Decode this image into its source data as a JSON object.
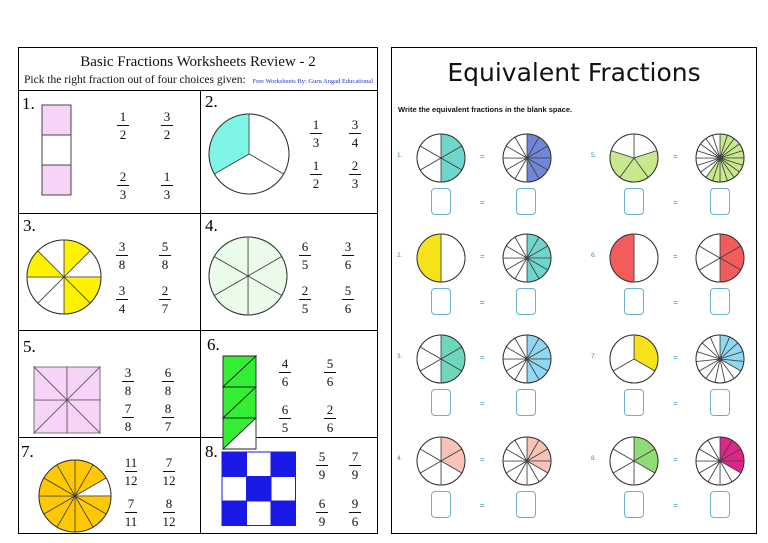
{
  "left": {
    "title": "Basic Fractions Worksheets Review - 2",
    "instruction": "Pick the right fraction out of four choices given:",
    "credit": "Free Worksheets By: Guru Angad Educational",
    "questions": [
      {
        "number": "1.",
        "shape": "vertical-bar",
        "parts": 3,
        "shaded": [
          0,
          2
        ],
        "color": "#f7d4f7",
        "choices": [
          {
            "num": "1",
            "den": "2"
          },
          {
            "num": "3",
            "den": "2"
          },
          {
            "num": "2",
            "den": "3"
          },
          {
            "num": "1",
            "den": "3"
          }
        ]
      },
      {
        "number": "2.",
        "shape": "circle",
        "parts": 3,
        "shaded": [
          0
        ],
        "color": "#7ff5e6",
        "choices": [
          {
            "num": "1",
            "den": "3"
          },
          {
            "num": "3",
            "den": "4"
          },
          {
            "num": "1",
            "den": "2"
          },
          {
            "num": "2",
            "den": "3"
          }
        ]
      },
      {
        "number": "3.",
        "shape": "circle",
        "parts": 8,
        "shaded": [
          0,
          2,
          3,
          6
        ],
        "color": "#fff200",
        "choices": [
          {
            "num": "3",
            "den": "8"
          },
          {
            "num": "5",
            "den": "8"
          },
          {
            "num": "3",
            "den": "4"
          },
          {
            "num": "2",
            "den": "7"
          }
        ]
      },
      {
        "number": "4.",
        "shape": "circle",
        "parts": 6,
        "shaded": [],
        "color": "#eafbea",
        "choices": [
          {
            "num": "6",
            "den": "5"
          },
          {
            "num": "3",
            "den": "6"
          },
          {
            "num": "2",
            "den": "5"
          },
          {
            "num": "5",
            "den": "6"
          }
        ]
      },
      {
        "number": "5.",
        "shape": "square",
        "parts": 8,
        "shaded": [
          0,
          1,
          2,
          3,
          4,
          5,
          6,
          7
        ],
        "color": "#f7d4f7",
        "choices": [
          {
            "num": "3",
            "den": "8"
          },
          {
            "num": "6",
            "den": "8"
          },
          {
            "num": "7",
            "den": "8"
          },
          {
            "num": "8",
            "den": "7"
          }
        ]
      },
      {
        "number": "6.",
        "shape": "triangles",
        "parts": 6,
        "shaded": [
          0,
          1,
          2,
          3,
          4
        ],
        "color": "#33ee33",
        "choices": [
          {
            "num": "4",
            "den": "6"
          },
          {
            "num": "5",
            "den": "6"
          },
          {
            "num": "6",
            "den": "5"
          },
          {
            "num": "2",
            "den": "6"
          }
        ]
      },
      {
        "number": "7.",
        "shape": "circle",
        "parts": 12,
        "shaded": [
          0,
          1,
          3,
          4,
          6,
          7,
          8,
          9,
          10,
          11,
          5
        ],
        "color": "#ffc800",
        "choices": [
          {
            "num": "11",
            "den": "12"
          },
          {
            "num": "7",
            "den": "12"
          },
          {
            "num": "7",
            "den": "11"
          },
          {
            "num": "8",
            "den": "12"
          }
        ]
      },
      {
        "number": "8.",
        "shape": "grid",
        "parts": 9,
        "shaded": [
          0,
          2,
          4,
          6,
          8
        ],
        "color": "#1a1ae6",
        "choices": [
          {
            "num": "5",
            "den": "9"
          },
          {
            "num": "7",
            "den": "9"
          },
          {
            "num": "6",
            "den": "9"
          },
          {
            "num": "9",
            "den": "6"
          }
        ]
      }
    ]
  },
  "right": {
    "title": "Equivalent Fractions",
    "instruction": "Write the equivalent fractions in the blank space.",
    "equals": "=",
    "rows": [
      {
        "number": "1.",
        "a": {
          "parts": 6,
          "shaded": 3,
          "color": "#6fd6cc"
        },
        "b": {
          "parts": 12,
          "shaded": 6,
          "color": "#6f86d9"
        },
        "number2": "5.",
        "c": {
          "parts": 5,
          "shaded": 3,
          "color": "#c7e88c"
        },
        "d": {
          "parts": 20,
          "shaded": 12,
          "color": "#c7e88c"
        }
      },
      {
        "number": "2.",
        "a": {
          "parts": 2,
          "shaded": 1,
          "color": "#f7e21a"
        },
        "b": {
          "parts": 12,
          "shaded": 6,
          "color": "#6fd6cc"
        },
        "number2": "6.",
        "c": {
          "parts": 2,
          "shaded": 1,
          "color": "#f25c5c"
        },
        "d": {
          "parts": 6,
          "shaded": 3,
          "color": "#f25c5c"
        }
      },
      {
        "number": "3.",
        "a": {
          "parts": 6,
          "shaded": 3,
          "color": "#6fd6bc"
        },
        "b": {
          "parts": 12,
          "shaded": 6,
          "color": "#8fd7f2"
        },
        "number2": "7.",
        "c": {
          "parts": 3,
          "shaded": 1,
          "color": "#f7e21a"
        },
        "d": {
          "parts": 15,
          "shaded": 5,
          "color": "#8fd7f2"
        }
      },
      {
        "number": "4.",
        "a": {
          "parts": 6,
          "shaded": 2,
          "color": "#f6c3b6"
        },
        "b": {
          "parts": 12,
          "shaded": 4,
          "color": "#f6c3b6"
        },
        "number2": "8.",
        "c": {
          "parts": 6,
          "shaded": 2,
          "color": "#8fdc77"
        },
        "d": {
          "parts": 12,
          "shaded": 4,
          "color": "#e0248a"
        }
      }
    ]
  }
}
